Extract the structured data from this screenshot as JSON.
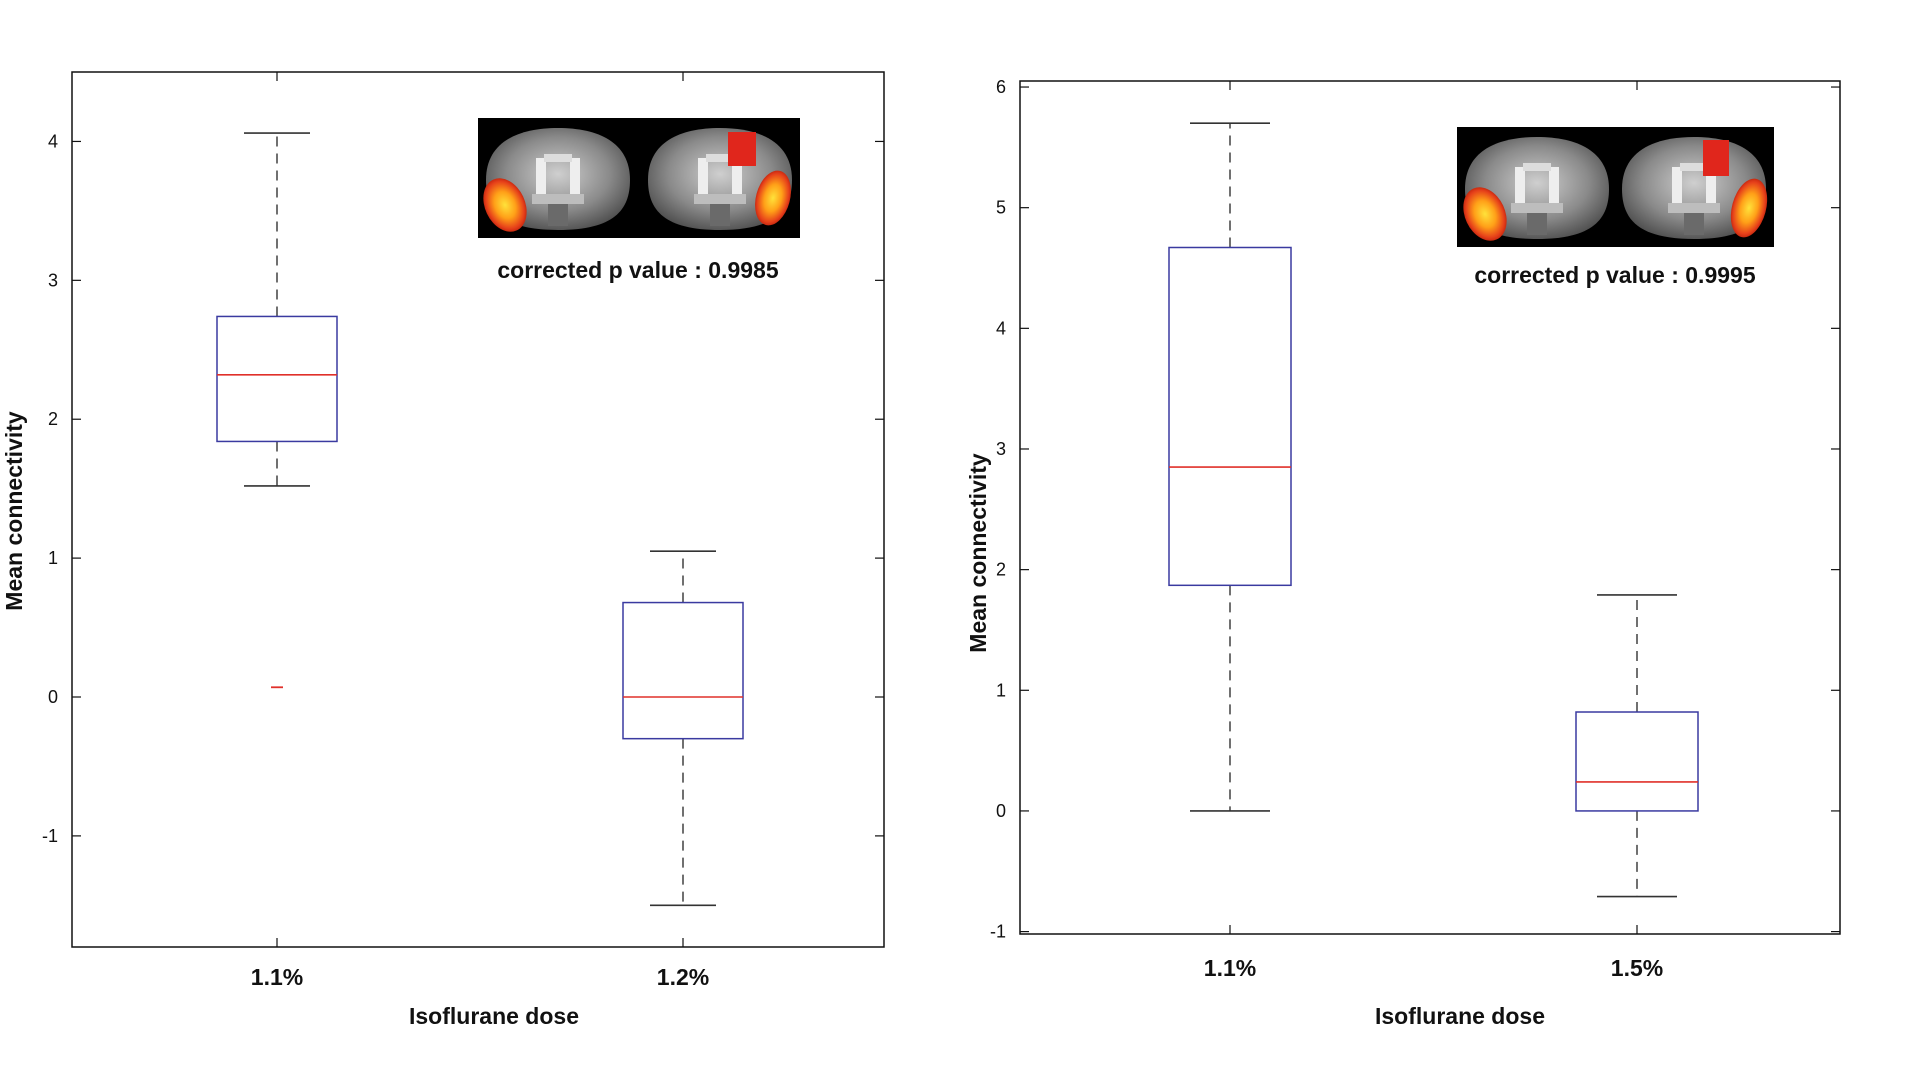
{
  "colors": {
    "axis": "#111111",
    "box": "#3a3aa0",
    "median": "#e0302a",
    "whisker": "#333333",
    "outlier": "#e0302a"
  },
  "chart_data": [
    {
      "type": "box",
      "xlabel": "Isoflurane dose",
      "ylabel": "Mean connectivity",
      "ylim": [
        -1.8,
        4.5
      ],
      "yticks": [
        -1,
        0,
        1,
        2,
        3,
        4
      ],
      "ytick_labels": [
        "-1",
        "0",
        "1",
        "2",
        "3",
        "4"
      ],
      "annotation": "corrected p value : 0.9985",
      "inset_icon": "brain-mri-slices-icon",
      "groups": [
        {
          "label": "1.1%",
          "whisker_low": 1.52,
          "q1": 1.84,
          "median": 2.32,
          "q3": 2.74,
          "whisker_high": 4.06,
          "outliers": [
            0.07
          ]
        },
        {
          "label": "1.2%",
          "whisker_low": -1.5,
          "q1": -0.3,
          "median": 0.0,
          "q3": 0.68,
          "whisker_high": 1.05,
          "outliers": []
        }
      ]
    },
    {
      "type": "box",
      "xlabel": "Isoflurane dose",
      "ylabel": "Mean connectivity",
      "ylim": [
        -1.02,
        6.05
      ],
      "yticks": [
        -1,
        0,
        1,
        2,
        3,
        4,
        5,
        6
      ],
      "ytick_labels": [
        "-1",
        "0",
        "1",
        "2",
        "3",
        "4",
        "5",
        "6"
      ],
      "annotation": "corrected p value : 0.9995",
      "inset_icon": "brain-mri-slices-icon",
      "groups": [
        {
          "label": "1.1%",
          "whisker_low": 0.0,
          "q1": 1.87,
          "median": 2.85,
          "q3": 4.67,
          "whisker_high": 5.7,
          "outliers": []
        },
        {
          "label": "1.5%",
          "whisker_low": -0.71,
          "q1": 0.0,
          "median": 0.24,
          "q3": 0.82,
          "whisker_high": 1.79,
          "outliers": []
        }
      ]
    }
  ]
}
